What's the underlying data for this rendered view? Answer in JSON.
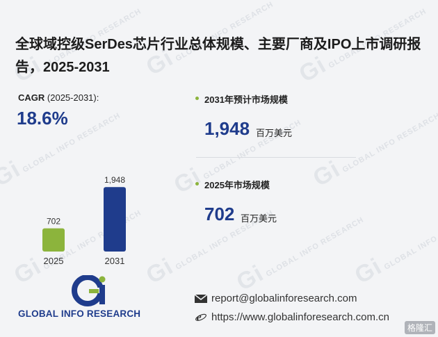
{
  "title": "全球域控级SerDes芯片行业总体规模、主要厂商及IPO上市调研报告，2025-2031",
  "cagr": {
    "label_bold": "CAGR",
    "label_range": "(2025-2031):",
    "value": "18.6%"
  },
  "stats": [
    {
      "label": "2031年预计市场规模",
      "value": "1,948",
      "unit": "百万美元"
    },
    {
      "label": "2025年市场规模",
      "value": "702",
      "unit": "百万美元"
    }
  ],
  "chart_data": {
    "type": "bar",
    "categories": [
      "2025",
      "2031"
    ],
    "values": [
      702,
      1948
    ],
    "data_labels": [
      "702",
      "1,948"
    ],
    "colors": [
      "#8cb43c",
      "#1f3c8c"
    ],
    "title": "",
    "xlabel": "",
    "ylabel": "",
    "ylim": [
      0,
      2100
    ],
    "grid": false
  },
  "logo": {
    "text": "GLOBAL INFO RESEARCH",
    "symbol_text": "Gi"
  },
  "contact": {
    "email": "report@globalinforesearch.com",
    "website": "https://www.globalinforesearch.com.cn",
    "email_icon": "envelope-icon",
    "web_icon": "internet-explorer-icon"
  },
  "watermark": {
    "text": "GLOBAL INFO RESEARCH",
    "symbol": "Gi"
  },
  "brand": "格隆汇",
  "colors": {
    "accent_blue": "#1f3c8c",
    "accent_green": "#8cb43c"
  }
}
